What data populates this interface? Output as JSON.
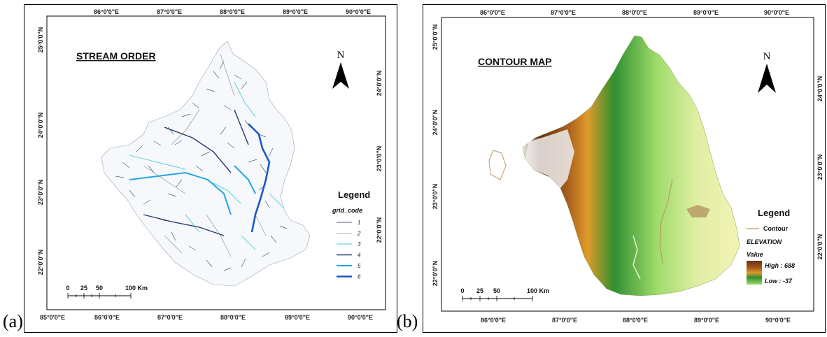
{
  "panel_a": {
    "letter": "(a)",
    "title": "STREAM ORDER",
    "north": "N",
    "top_lon_labels": [
      "86°0'0\"E",
      "87°0'0\"E",
      "88°0'0\"E",
      "89°0'0\"E",
      "90°0'0\"E"
    ],
    "bottom_lon_labels": [
      "85°0'0\"E",
      "86°0'0\"E",
      "87°0'0\"E",
      "88°0'0\"E",
      "89°0'0\"E",
      "90°0'0\"E"
    ],
    "left_lat_labels": [
      "25°0'0\"N",
      "24°0'0\"N",
      "23°0'0\"N",
      "22°0'0\"N"
    ],
    "right_lat_labels": [
      "24°0'0\"N",
      "23°0'0\"N",
      "22°0'0\"N"
    ],
    "legend": {
      "title": "Legend",
      "field": "grid_code",
      "items": [
        {
          "label": "1",
          "color": "#1a2a4a"
        },
        {
          "label": "2",
          "color": "#8899aa"
        },
        {
          "label": "3",
          "color": "#66d4e0"
        },
        {
          "label": "4",
          "color": "#223a6a"
        },
        {
          "label": "5",
          "color": "#22a8e0"
        },
        {
          "label": "6",
          "color": "#1a5bbf"
        }
      ]
    },
    "scale": {
      "ticks": [
        "0",
        "25",
        "50",
        "100 Km"
      ]
    }
  },
  "panel_b": {
    "letter": "(b)",
    "title": "CONTOUR MAP",
    "north": "N",
    "top_lon_labels": [
      "86°0'0\"E",
      "87°0'0\"E",
      "88°0'0\"E",
      "89°0'0\"E",
      "90°0'0\"E"
    ],
    "bottom_lon_labels": [
      "86°0'0\"E",
      "87°0'0\"E",
      "88°0'0\"E",
      "89°0'0\"E",
      "90°0'0\"E"
    ],
    "left_lat_labels": [
      "25°0'0\"N",
      "24°0'0\"N",
      "23°0'0\"N",
      "22°0'0\"N"
    ],
    "right_lat_labels": [
      "24°0'0\"N",
      "23°0'0\"N",
      "22°0'0\"N"
    ],
    "legend": {
      "title": "Legend",
      "contour_label": "Contour",
      "elevation_label": "ELEVATION",
      "value_label": "Value",
      "high": "High : 688",
      "low": "Low : -37",
      "contour_color": "#c8a878",
      "ramp_colors": [
        "#6b2f12",
        "#a35a1e",
        "#e09a2a",
        "#2f8f2f",
        "#9fdc6a"
      ]
    },
    "scale": {
      "ticks": [
        "0",
        "25",
        "50",
        "100 Km"
      ]
    }
  }
}
